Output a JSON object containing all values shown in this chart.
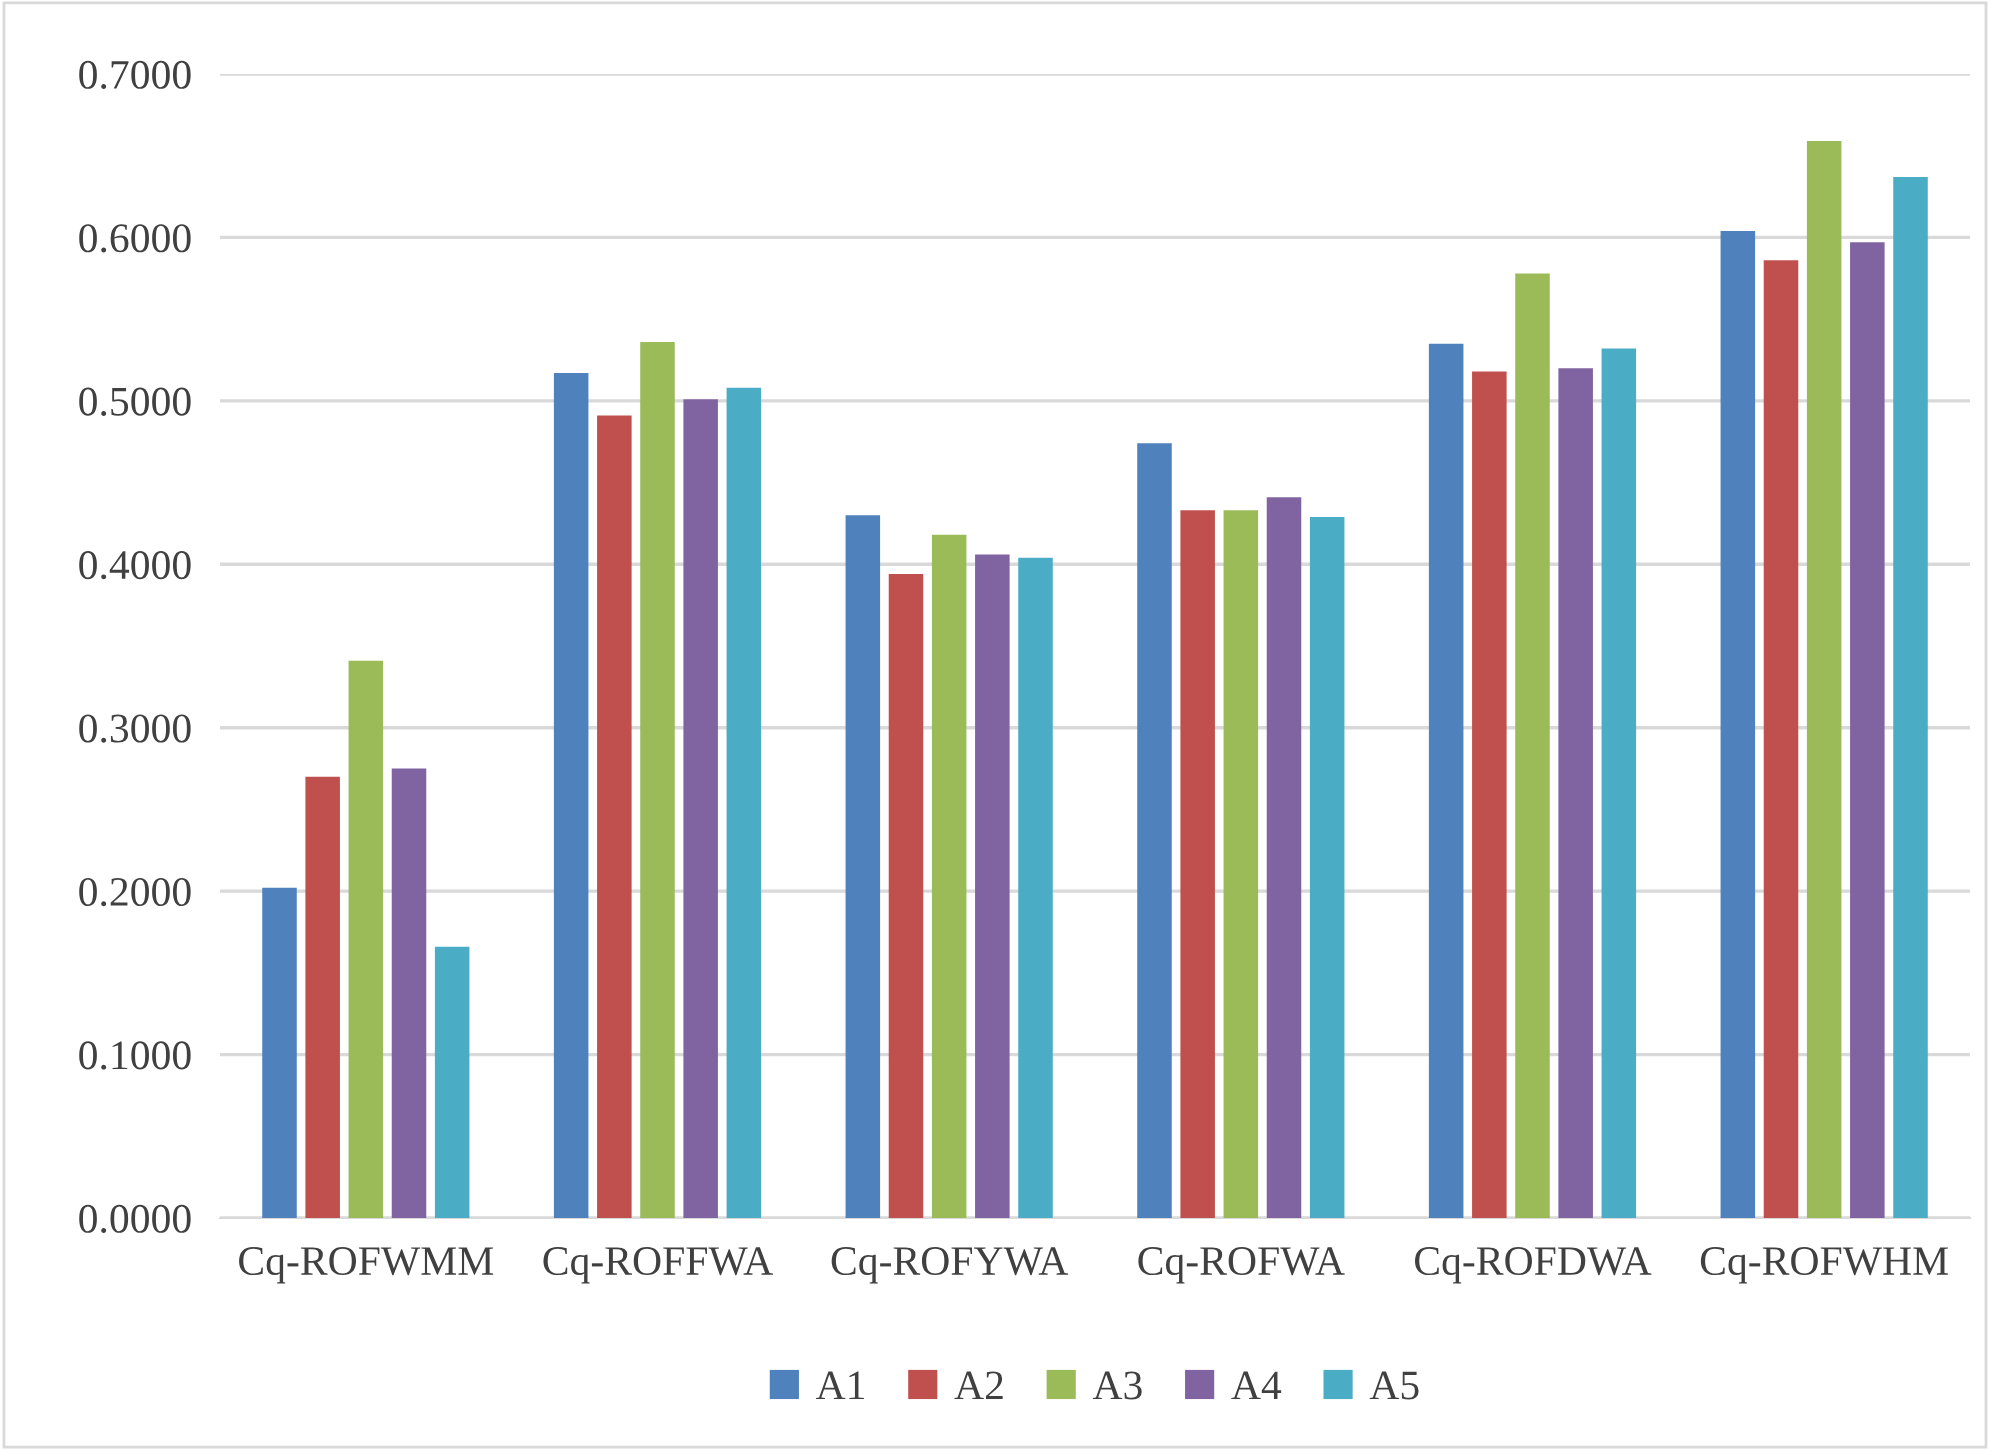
{
  "chart_data": {
    "type": "bar",
    "categories": [
      "Cq-ROFWMM",
      "Cq-ROFFWA",
      "Cq-ROFYWA",
      "Cq-ROFWA",
      "Cq-ROFDWA",
      "Cq-ROFWHM"
    ],
    "series": [
      {
        "name": "A1",
        "color": "#4f81bd",
        "values": [
          0.202,
          0.517,
          0.43,
          0.474,
          0.535,
          0.604
        ]
      },
      {
        "name": "A2",
        "color": "#c0504d",
        "values": [
          0.27,
          0.491,
          0.394,
          0.433,
          0.518,
          0.586
        ]
      },
      {
        "name": "A3",
        "color": "#9bbb59",
        "values": [
          0.341,
          0.536,
          0.418,
          0.433,
          0.578,
          0.659
        ]
      },
      {
        "name": "A4",
        "color": "#8064a2",
        "values": [
          0.275,
          0.501,
          0.406,
          0.441,
          0.52,
          0.597
        ]
      },
      {
        "name": "A5",
        "color": "#4bacc6",
        "values": [
          0.166,
          0.508,
          0.404,
          0.429,
          0.532,
          0.637
        ]
      }
    ],
    "ylim": [
      0,
      0.7
    ],
    "yticks": [
      {
        "value": 0,
        "label": "0.0000"
      },
      {
        "value": 0.1,
        "label": "0.1000"
      },
      {
        "value": 0.2,
        "label": "0.2000"
      },
      {
        "value": 0.3,
        "label": "0.3000"
      },
      {
        "value": 0.4,
        "label": "0.4000"
      },
      {
        "value": 0.5,
        "label": "0.5000"
      },
      {
        "value": 0.6,
        "label": "0.6000"
      },
      {
        "value": 0.7,
        "label": "0.7000"
      }
    ],
    "grid": "y",
    "legend": "bottom"
  }
}
